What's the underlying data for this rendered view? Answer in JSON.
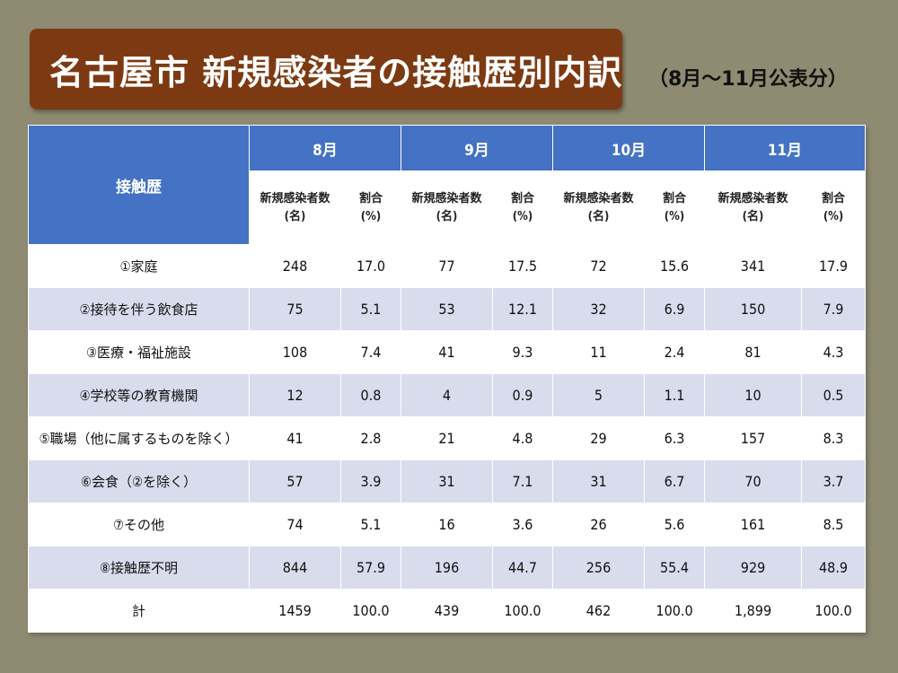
{
  "title": "名古屋市  新規感染者の接触歴別内訳",
  "subtitle": "（8月～11月公表分）",
  "table": {
    "row_header": "接触歴",
    "months": [
      "8月",
      "9月",
      "10月",
      "11月"
    ],
    "sub_headers": {
      "count_line1": "新規感染者数",
      "count_line2": "(名)",
      "ratio_line1": "割合",
      "ratio_line2": "(%)"
    },
    "rows": [
      {
        "label": "①家庭",
        "values": [
          "248",
          "17.0",
          "77",
          "17.5",
          "72",
          "15.6",
          "341",
          "17.9"
        ]
      },
      {
        "label": "②接待を伴う飲食店",
        "values": [
          "75",
          "5.1",
          "53",
          "12.1",
          "32",
          "6.9",
          "150",
          "7.9"
        ]
      },
      {
        "label": "③医療・福祉施設",
        "values": [
          "108",
          "7.4",
          "41",
          "9.3",
          "11",
          "2.4",
          "81",
          "4.3"
        ]
      },
      {
        "label": "④学校等の教育機関",
        "values": [
          "12",
          "0.8",
          "4",
          "0.9",
          "5",
          "1.1",
          "10",
          "0.5"
        ]
      },
      {
        "label": "⑤職場（他に属するものを除く）",
        "values": [
          "41",
          "2.8",
          "21",
          "4.8",
          "29",
          "6.3",
          "157",
          "8.3"
        ]
      },
      {
        "label": "⑥会食（②を除く）",
        "values": [
          "57",
          "3.9",
          "31",
          "7.1",
          "31",
          "6.7",
          "70",
          "3.7"
        ]
      },
      {
        "label": "⑦その他",
        "values": [
          "74",
          "5.1",
          "16",
          "3.6",
          "26",
          "5.6",
          "161",
          "8.5"
        ]
      },
      {
        "label": "⑧接触歴不明",
        "values": [
          "844",
          "57.9",
          "196",
          "44.7",
          "256",
          "55.4",
          "929",
          "48.9"
        ]
      }
    ],
    "total": {
      "label": "計",
      "values": [
        "1459",
        "100.0",
        "439",
        "100.0",
        "462",
        "100.0",
        "1,899",
        "100.0"
      ]
    }
  }
}
